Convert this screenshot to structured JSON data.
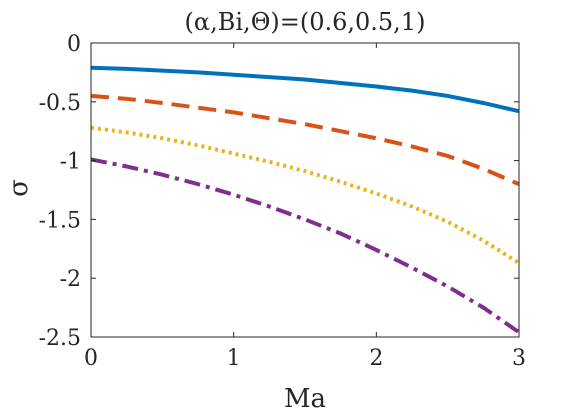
{
  "chart_data": {
    "type": "line",
    "title": "(α,Bi,Θ)=(0.6,0.5,1)",
    "xlabel": "Ma",
    "ylabel": "σ",
    "xlim": [
      0,
      3
    ],
    "ylim": [
      -2.5,
      0
    ],
    "xticks": [
      "0",
      "1",
      "2",
      "3"
    ],
    "yticks": [
      "0",
      "-0.5",
      "-1",
      "-1.5",
      "-2",
      "-2.5"
    ],
    "grid": false,
    "legend": "none",
    "x": [
      0,
      0.25,
      0.5,
      0.75,
      1.0,
      1.25,
      1.5,
      1.75,
      2.0,
      2.25,
      2.5,
      2.75,
      3.0
    ],
    "series": [
      {
        "color": "#0072BD",
        "style": "solid",
        "values": [
          -0.21,
          -0.22,
          -0.235,
          -0.25,
          -0.27,
          -0.29,
          -0.31,
          -0.34,
          -0.37,
          -0.405,
          -0.45,
          -0.51,
          -0.58
        ]
      },
      {
        "color": "#D95319",
        "style": "dashed",
        "values": [
          -0.45,
          -0.475,
          -0.51,
          -0.55,
          -0.59,
          -0.64,
          -0.69,
          -0.75,
          -0.81,
          -0.88,
          -0.96,
          -1.07,
          -1.2
        ]
      },
      {
        "color": "#EDB120",
        "style": "dotted",
        "values": [
          -0.72,
          -0.76,
          -0.81,
          -0.87,
          -0.94,
          -1.01,
          -1.09,
          -1.18,
          -1.28,
          -1.39,
          -1.52,
          -1.68,
          -1.87
        ]
      },
      {
        "color": "#7E2F8E",
        "style": "dashdot",
        "values": [
          -0.99,
          -1.05,
          -1.12,
          -1.2,
          -1.29,
          -1.39,
          -1.5,
          -1.62,
          -1.76,
          -1.91,
          -2.07,
          -2.25,
          -2.46
        ]
      }
    ]
  }
}
